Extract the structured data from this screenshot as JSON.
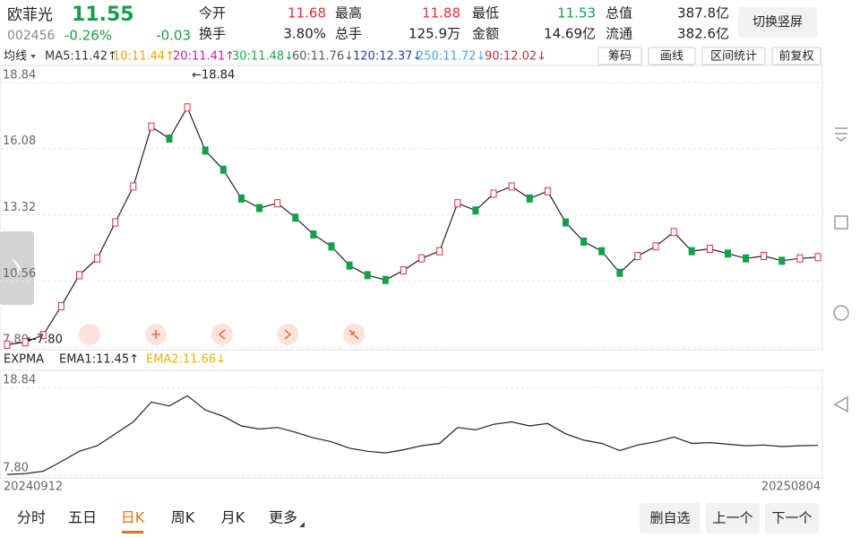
{
  "header": {
    "name": "欧菲光",
    "price": "11.55",
    "code": "002456",
    "change_pct": "-0.26%",
    "change": "-0.03",
    "quotes": [
      [
        {
          "label": "今开",
          "value": "11.68",
          "color": "#e0303a"
        },
        {
          "label": "最高",
          "value": "11.88",
          "color": "#e0303a"
        },
        {
          "label": "最低",
          "value": "11.53",
          "color": "#13a049"
        },
        {
          "label": "总值",
          "value": "387.8亿",
          "color": "#222"
        }
      ],
      [
        {
          "label": "换手",
          "value": "3.80%",
          "color": "#222"
        },
        {
          "label": "总手",
          "value": "125.9万",
          "color": "#222"
        },
        {
          "label": "金额",
          "value": "14.69亿",
          "color": "#222"
        },
        {
          "label": "流通",
          "value": "382.6亿",
          "color": "#222"
        }
      ]
    ],
    "button": "切换竖屏"
  },
  "ma_bar": {
    "mode": "均线",
    "items": [
      {
        "text": "MA5:11.42↑",
        "color": "#333333"
      },
      {
        "text": "10:11.44↑",
        "color": "#f0a500"
      },
      {
        "text": "20:11.41↑",
        "color": "#d81b9a"
      },
      {
        "text": "30:11.48↓",
        "color": "#1aa84a"
      },
      {
        "text": "60:11.76↓",
        "color": "#555555"
      },
      {
        "text": "120:12.37↓",
        "color": "#2a3d9c"
      },
      {
        "text": "250:11.72↓",
        "color": "#4aa8e0"
      },
      {
        "text": "90:12.02↓",
        "color": "#c0303a"
      }
    ],
    "buttons": [
      "筹码",
      "画线",
      "区间统计",
      "前复权"
    ]
  },
  "main_chart": {
    "type": "line",
    "ylim": [
      7.69,
      19.55
    ],
    "yticks": [
      18.84,
      16.08,
      13.32,
      10.56,
      7.8
    ],
    "ytick_labels": [
      "18.84",
      "16.08",
      "13.32",
      "10.56",
      "7.80"
    ],
    "annotations": [
      "←18.84",
      "←7.80"
    ],
    "grid": true,
    "color": "#222222",
    "values": [
      7.9,
      8.0,
      8.3,
      9.5,
      10.8,
      11.5,
      13.0,
      14.5,
      17.0,
      16.5,
      17.8,
      16.0,
      15.2,
      14.0,
      13.6,
      13.8,
      13.2,
      12.5,
      12.0,
      11.2,
      10.8,
      10.6,
      11.0,
      11.5,
      11.8,
      13.8,
      13.5,
      14.2,
      14.5,
      14.0,
      14.3,
      13.0,
      12.2,
      11.8,
      10.9,
      11.6,
      12.0,
      12.6,
      11.8,
      11.9,
      11.7,
      11.5,
      11.6,
      11.4,
      11.5,
      11.55
    ]
  },
  "expma_bar": {
    "items": [
      {
        "text": "EXPMA",
        "color": "#222222"
      },
      {
        "text": "EMA1:11.45↑",
        "color": "#222222"
      },
      {
        "text": "EMA2:11.66↓",
        "color": "#e8b400"
      }
    ]
  },
  "sub_chart": {
    "type": "line",
    "ylim": [
      7.57,
      20.76
    ],
    "yticks": [
      18.84,
      7.8
    ],
    "ytick_labels": [
      "18.84",
      "7.80"
    ]
  },
  "x_labels": [
    "20240912",
    "20250804"
  ],
  "tabs": [
    "分时",
    "五日",
    "日K",
    "周K",
    "月K",
    "更多"
  ],
  "selected_tab": 2,
  "buttons": [
    "删自选",
    "上一个",
    "下一个"
  ]
}
